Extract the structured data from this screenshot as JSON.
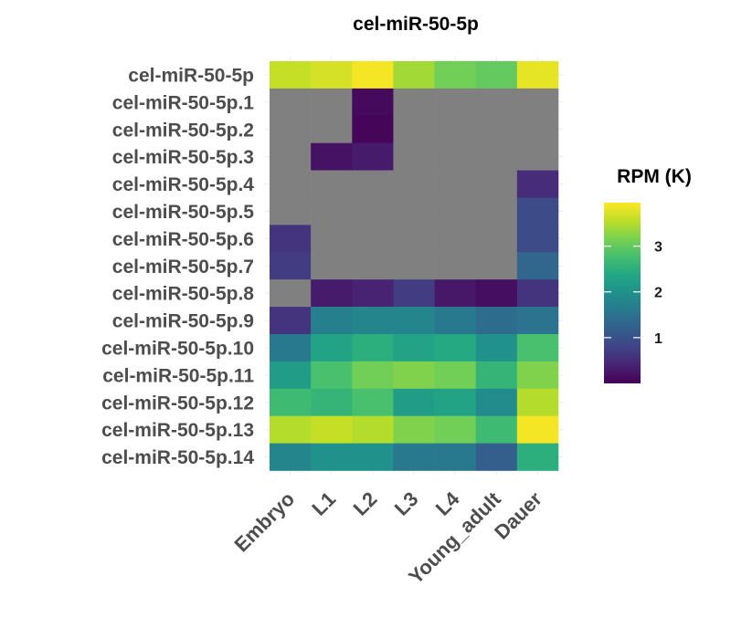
{
  "chart_data": {
    "type": "heatmap",
    "title": "cel-miR-50-5p",
    "x_categories": [
      "Embryo",
      "L1",
      "L2",
      "L3",
      "L4",
      "Young_adult",
      "Dauer"
    ],
    "y_categories": [
      "cel-miR-50-5p",
      "cel-miR-50-5p.1",
      "cel-miR-50-5p.2",
      "cel-miR-50-5p.3",
      "cel-miR-50-5p.4",
      "cel-miR-50-5p.5",
      "cel-miR-50-5p.6",
      "cel-miR-50-5p.7",
      "cel-miR-50-5p.8",
      "cel-miR-50-5p.9",
      "cel-miR-50-5p.10",
      "cel-miR-50-5p.11",
      "cel-miR-50-5p.12",
      "cel-miR-50-5p.13",
      "cel-miR-50-5p.14"
    ],
    "values": [
      [
        3.6,
        3.7,
        3.9,
        3.4,
        3.1,
        3.0,
        3.8
      ],
      [
        null,
        null,
        0.1,
        null,
        null,
        null,
        null
      ],
      [
        null,
        null,
        0.05,
        null,
        null,
        null,
        null
      ],
      [
        null,
        0.2,
        0.3,
        null,
        null,
        null,
        null
      ],
      [
        null,
        null,
        null,
        null,
        null,
        null,
        0.5
      ],
      [
        null,
        null,
        null,
        null,
        null,
        null,
        0.9
      ],
      [
        0.6,
        null,
        null,
        null,
        null,
        null,
        0.9
      ],
      [
        0.7,
        null,
        null,
        null,
        null,
        null,
        1.3
      ],
      [
        null,
        0.3,
        0.4,
        0.7,
        0.25,
        0.15,
        0.6
      ],
      [
        0.6,
        1.7,
        1.8,
        1.8,
        1.6,
        1.4,
        1.5
      ],
      [
        1.6,
        2.3,
        2.5,
        2.3,
        2.4,
        2.0,
        2.8
      ],
      [
        2.2,
        2.8,
        3.1,
        3.2,
        3.1,
        2.6,
        3.2
      ],
      [
        2.7,
        2.6,
        2.8,
        2.2,
        2.3,
        1.9,
        3.5
      ],
      [
        3.5,
        3.6,
        3.5,
        3.2,
        3.1,
        2.7,
        3.9
      ],
      [
        1.8,
        2.0,
        2.0,
        1.6,
        1.6,
        1.2,
        2.5
      ]
    ],
    "na_color": "#808080",
    "colorscale": "viridis",
    "value_range": [
      0,
      3.95
    ],
    "legend": {
      "title": "RPM (K)",
      "ticks": [
        1,
        2,
        3
      ],
      "tick_labels": [
        "1",
        "2",
        "3"
      ],
      "position": "right"
    },
    "grid": true
  }
}
